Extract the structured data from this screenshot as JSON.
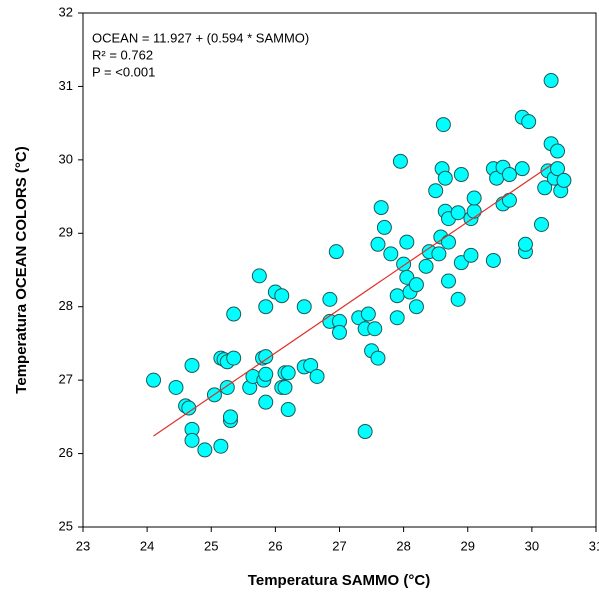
{
  "chart_data": {
    "type": "scatter",
    "xlabel": "Temperatura SAMMO  (°C)",
    "ylabel": "Temperatura OCEAN COLORS (°C)",
    "annotations": [
      "OCEAN = 11.927 + (0.594 * SAMMO)",
      "R² = 0.762",
      "P = <0.001"
    ],
    "color": "#00ffff",
    "x": [
      24.1,
      24.45,
      24.6,
      24.65,
      24.7,
      24.7,
      24.7,
      24.9,
      25.05,
      25.15,
      25.15,
      25.2,
      25.25,
      25.25,
      25.3,
      25.3,
      25.35,
      25.35,
      25.6,
      25.65,
      25.75,
      25.8,
      25.82,
      25.85,
      25.85,
      25.85,
      25.85,
      26.0,
      26.1,
      26.1,
      26.15,
      26.15,
      26.2,
      26.2,
      26.45,
      26.45,
      26.55,
      26.65,
      26.85,
      26.85,
      26.95,
      27.0,
      27.0,
      27.3,
      27.4,
      27.4,
      27.45,
      27.5,
      27.55,
      27.6,
      27.6,
      27.65,
      27.7,
      27.8,
      27.9,
      27.9,
      27.95,
      28.0,
      28.05,
      28.05,
      28.1,
      28.2,
      28.2,
      28.35,
      28.4,
      28.5,
      28.55,
      28.58,
      28.6,
      28.62,
      28.65,
      28.65,
      28.7,
      28.7,
      28.7,
      28.85,
      28.85,
      28.9,
      28.9,
      29.05,
      29.05,
      29.1,
      29.1,
      29.4,
      29.4,
      29.45,
      29.55,
      29.55,
      29.65,
      29.65,
      29.85,
      29.85,
      29.9,
      29.9,
      29.95,
      30.15,
      30.2,
      30.25,
      30.3,
      30.3,
      30.35,
      30.4,
      30.4,
      30.45,
      30.5
    ],
    "values": [
      27.0,
      26.9,
      26.65,
      26.62,
      27.2,
      26.33,
      26.18,
      26.05,
      26.8,
      26.1,
      27.3,
      27.28,
      26.9,
      27.25,
      26.45,
      26.5,
      27.3,
      27.9,
      26.9,
      27.05,
      28.42,
      27.3,
      27.0,
      27.32,
      27.08,
      28.0,
      26.7,
      28.2,
      28.15,
      26.9,
      27.1,
      26.9,
      27.1,
      26.6,
      27.18,
      28.0,
      27.2,
      27.05,
      27.8,
      28.1,
      28.75,
      27.8,
      27.65,
      27.85,
      27.7,
      26.3,
      27.9,
      27.4,
      27.7,
      28.85,
      27.3,
      29.35,
      29.08,
      28.72,
      28.15,
      27.85,
      29.98,
      28.58,
      28.88,
      28.4,
      28.2,
      28.0,
      28.3,
      28.55,
      28.75,
      29.58,
      28.72,
      28.95,
      29.88,
      30.48,
      29.75,
      29.3,
      29.2,
      28.88,
      28.35,
      28.1,
      29.28,
      29.8,
      28.6,
      28.7,
      29.2,
      29.3,
      29.48,
      28.63,
      29.88,
      29.75,
      29.4,
      29.9,
      29.45,
      29.8,
      29.88,
      30.58,
      28.75,
      28.85,
      30.52,
      29.12,
      29.62,
      29.85,
      31.08,
      30.22,
      29.75,
      29.88,
      30.12,
      29.58,
      29.72
    ],
    "fit": {
      "color": "#e0302a",
      "x": [
        24.1,
        30.3
      ],
      "values": [
        26.24,
        29.93
      ]
    },
    "xlim": [
      23,
      31
    ],
    "xticks": [
      23,
      24,
      25,
      26,
      27,
      28,
      29,
      30,
      31
    ],
    "ylim": [
      25,
      32
    ],
    "yticks": [
      25,
      26,
      27,
      28,
      29,
      30,
      31,
      32
    ],
    "grid": false
  }
}
